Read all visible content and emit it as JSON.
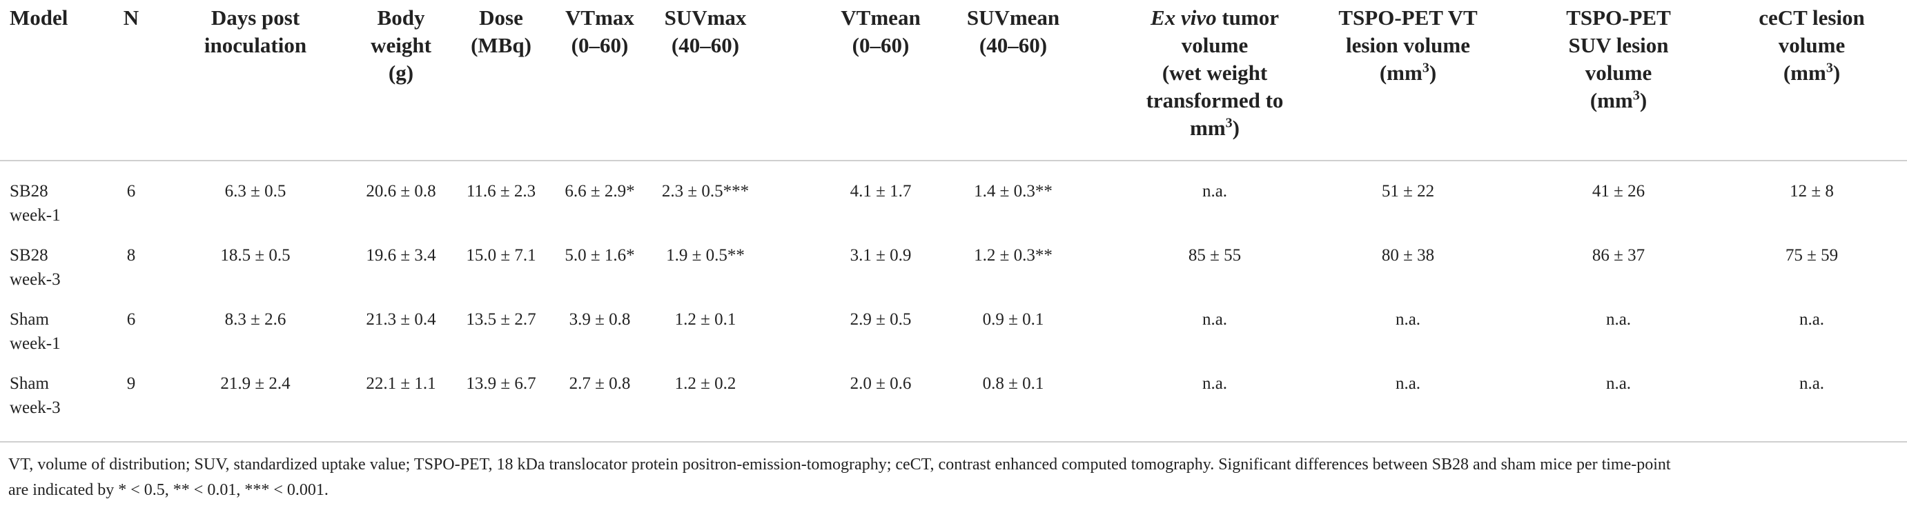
{
  "table": {
    "header": [
      [
        "Model"
      ],
      [
        "N"
      ],
      [
        "Days post",
        "inoculation"
      ],
      [
        "Body",
        "weight",
        "(g)"
      ],
      [
        "Dose",
        "(MBq)"
      ],
      [
        "VTmax",
        "(0–60)"
      ],
      [
        "SUVmax",
        "(40–60)"
      ],
      [
        "VTmean",
        "(0–60)"
      ],
      [
        "SUVmean",
        "(40–60)"
      ],
      [
        {
          "italic": "Ex vivo",
          "text": " tumor"
        },
        "volume",
        "(wet weight",
        "transformed to",
        {
          "text": "mm",
          "sup": "3",
          "end": ")"
        }
      ],
      [
        "TSPO-PET VT",
        "lesion volume",
        {
          "text": "(mm",
          "sup": "3",
          "end": ")"
        }
      ],
      [
        "TSPO-PET",
        "SUV lesion",
        "volume",
        {
          "text": "(mm",
          "sup": "3",
          "end": ")"
        }
      ],
      [
        "ceCT lesion",
        "volume",
        {
          "text": "(mm",
          "sup": "3",
          "end": ")"
        }
      ]
    ],
    "rows": [
      [
        [
          "SB28",
          "week-1"
        ],
        "6",
        "6.3 ± 0.5",
        "20.6 ± 0.8",
        "11.6 ± 2.3",
        "6.6 ± 2.9*",
        "2.3 ± 0.5***",
        "4.1 ± 1.7",
        "1.4 ± 0.3**",
        "n.a.",
        "51 ± 22",
        "41 ± 26",
        "12 ± 8"
      ],
      [
        [
          "SB28",
          "week-3"
        ],
        "8",
        "18.5 ± 0.5",
        "19.6 ± 3.4",
        "15.0 ± 7.1",
        "5.0 ± 1.6*",
        "1.9 ± 0.5**",
        "3.1 ± 0.9",
        "1.2 ± 0.3**",
        "85 ± 55",
        "80 ± 38",
        "86 ± 37",
        "75 ± 59"
      ],
      [
        [
          "Sham",
          "week-1"
        ],
        "6",
        "8.3 ± 2.6",
        "21.3 ± 0.4",
        "13.5 ± 2.7",
        "3.9 ± 0.8",
        "1.2 ± 0.1",
        "2.9 ± 0.5",
        "0.9 ± 0.1",
        "n.a.",
        "n.a.",
        "n.a.",
        "n.a."
      ],
      [
        [
          "Sham",
          "week-3"
        ],
        "9",
        "21.9 ± 2.4",
        "22.1 ± 1.1",
        "13.9 ± 6.7",
        "2.7 ± 0.8",
        "1.2 ± 0.2",
        "2.0 ± 0.6",
        "0.8 ± 0.1",
        "n.a.",
        "n.a.",
        "n.a.",
        "n.a."
      ]
    ],
    "footnote": [
      "VT, volume of distribution; SUV, standardized uptake value; TSPO-PET, 18 kDa translocator protein positron-emission-tomography; ceCT, contrast enhanced computed tomography. Significant differences between SB28 and sham mice per time-point",
      "are indicated by * < 0.5, ** < 0.01, *** < 0.001."
    ]
  }
}
